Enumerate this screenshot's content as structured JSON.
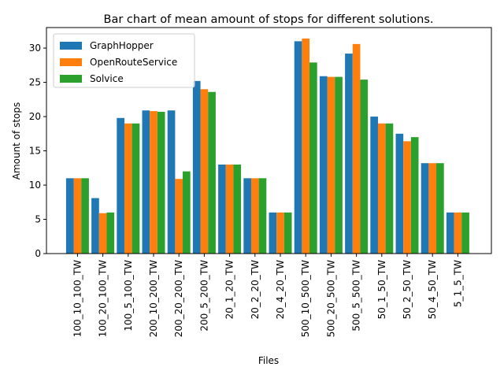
{
  "chart_data": {
    "type": "bar",
    "title": "Bar chart of mean amount of stops for different solutions.",
    "xlabel": "Files",
    "ylabel": "Amount of stops",
    "ylim": [
      0,
      33
    ],
    "yticks": [
      0,
      5,
      10,
      15,
      20,
      25,
      30
    ],
    "grid": false,
    "legend_position": "top-left",
    "categories": [
      "100_10_100_TW",
      "100_20_100_TW",
      "100_5_100_TW",
      "200_10_200_TW",
      "200_20_200_TW",
      "200_5_200_TW",
      "20_1_20_TW",
      "20_2_20_TW",
      "20_4_20_TW",
      "500_10_500_TW",
      "500_20_500_TW",
      "500_5_500_TW",
      "50_1_50_TW",
      "50_2_50_TW",
      "50_4_50_TW",
      "5_1_5_TW"
    ],
    "series": [
      {
        "name": "GraphHopper",
        "color": "#1f77b4",
        "values": [
          11,
          8.1,
          19.8,
          20.9,
          20.9,
          25.2,
          13,
          11,
          6,
          31,
          25.9,
          29.2,
          20,
          17.5,
          13.2,
          6
        ]
      },
      {
        "name": "OpenRouteService",
        "color": "#ff7f0e",
        "values": [
          11,
          5.9,
          19,
          20.8,
          10.9,
          24,
          13,
          11,
          6,
          31.4,
          25.8,
          30.6,
          19,
          16.4,
          13.2,
          6
        ]
      },
      {
        "name": "Solvice",
        "color": "#2ca02c",
        "values": [
          11,
          6,
          19,
          20.7,
          12,
          23.6,
          13,
          11,
          6,
          27.9,
          25.8,
          25.4,
          19,
          17,
          13.2,
          6
        ]
      }
    ]
  }
}
